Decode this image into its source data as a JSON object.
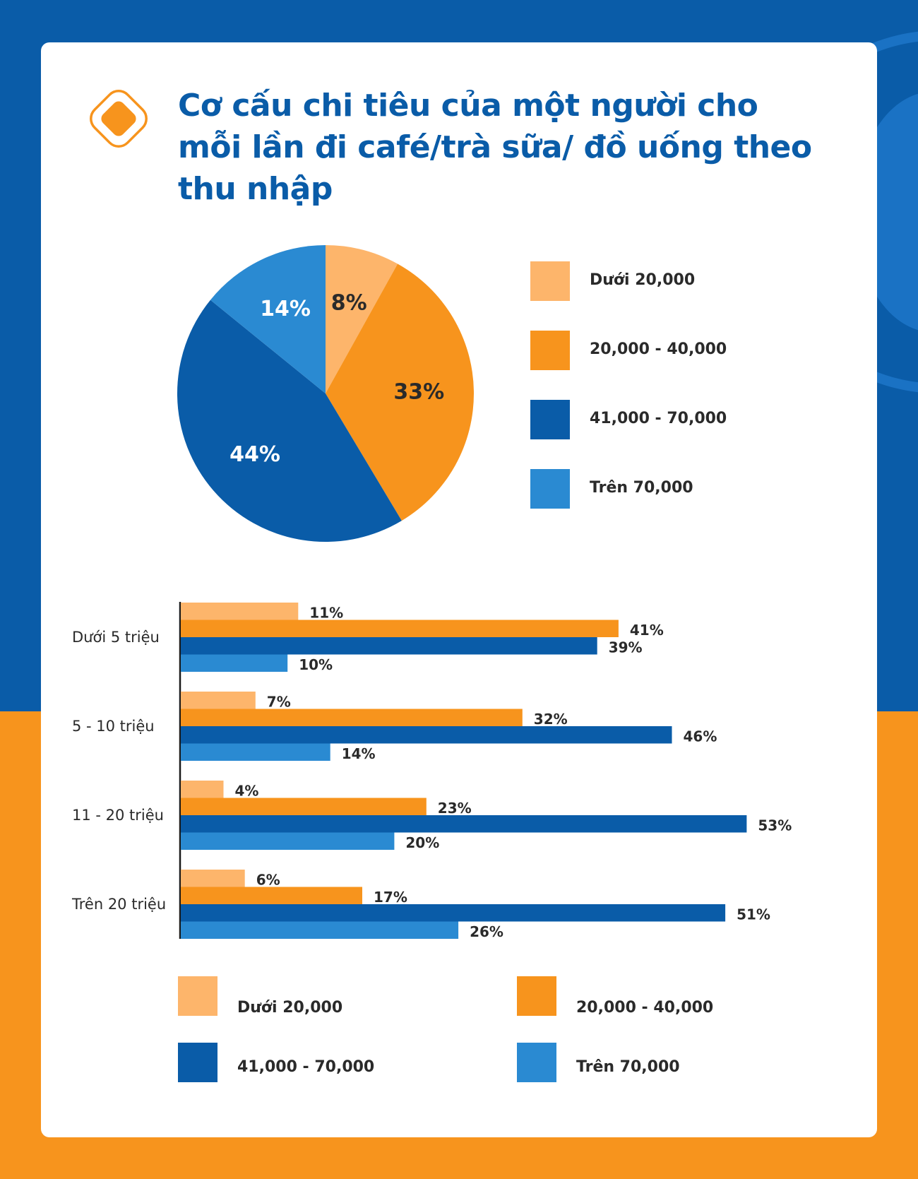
{
  "title": "Cơ cấu chi tiêu của một người cho mỗi lần đi café/trà sữa/ đồ uống theo thu nhập",
  "colors": {
    "under_20k": "#fdb56b",
    "20k_40k": "#f7941d",
    "41k_70k": "#0a5ca8",
    "over_70k": "#2a8ad2",
    "title": "#0a5ca8",
    "bg_top": "#0a5ca8",
    "bg_bottom": "#f7941d"
  },
  "legend": [
    {
      "label": "Dưới 20,000",
      "color": "#fdb56b"
    },
    {
      "label": "20,000 - 40,000",
      "color": "#f7941d"
    },
    {
      "label": "41,000 - 70,000",
      "color": "#0a5ca8"
    },
    {
      "label": "Trên 70,000",
      "color": "#2a8ad2"
    }
  ],
  "chart_data": [
    {
      "type": "pie",
      "labels": [
        "Dưới 20,000",
        "20,000 - 40,000",
        "41,000 - 70,000",
        "Trên 70,000"
      ],
      "values": [
        8,
        33,
        44,
        14
      ],
      "value_labels": [
        "8%",
        "33%",
        "44%",
        "14%"
      ],
      "colors": [
        "#fdb56b",
        "#f7941d",
        "#0a5ca8",
        "#2a8ad2"
      ],
      "label_colors": [
        "#2a2a2a",
        "#2a2a2a",
        "#ffffff",
        "#ffffff"
      ],
      "legend_position": "right"
    },
    {
      "type": "bar",
      "orientation": "horizontal",
      "categories": [
        "Dưới 5 triệu",
        "5 - 10 triệu",
        "11 - 20 triệu",
        "Trên 20 triệu"
      ],
      "series": [
        {
          "name": "Dưới 20,000",
          "color": "#fdb56b",
          "values": [
            11,
            7,
            4,
            6
          ]
        },
        {
          "name": "20,000 - 40,000",
          "color": "#f7941d",
          "values": [
            41,
            32,
            23,
            17
          ]
        },
        {
          "name": "41,000 - 70,000",
          "color": "#0a5ca8",
          "values": [
            39,
            46,
            53,
            51
          ]
        },
        {
          "name": "Trên 70,000",
          "color": "#2a8ad2",
          "values": [
            10,
            14,
            20,
            26
          ]
        }
      ],
      "value_suffix": "%",
      "xlim": [
        0,
        55
      ],
      "grid": false,
      "legend_position": "bottom"
    }
  ]
}
